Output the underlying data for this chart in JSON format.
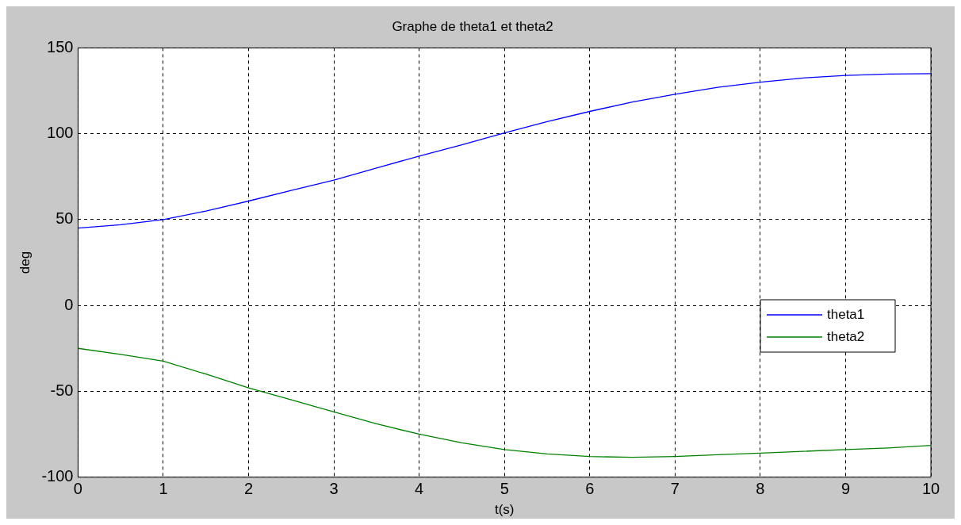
{
  "chart_data": {
    "type": "line",
    "title": "Graphe de theta1 et theta2",
    "xlabel": "t(s)",
    "ylabel": "deg",
    "xlim": [
      0,
      10
    ],
    "xticks": [
      0,
      1,
      2,
      3,
      4,
      5,
      6,
      7,
      8,
      9,
      10
    ],
    "ylim": [
      -100,
      150
    ],
    "yticks": [
      -100,
      -50,
      0,
      50,
      100,
      150
    ],
    "grid": true,
    "legend": "right",
    "line_style": "solid",
    "marker": "none",
    "series": [
      {
        "name": "theta1",
        "color": "#0000ff",
        "x": [
          0,
          0.5,
          1,
          1.5,
          2,
          2.5,
          3,
          3.5,
          4,
          4.5,
          5,
          5.5,
          6,
          6.5,
          7,
          7.5,
          8,
          8.5,
          9,
          9.5,
          10
        ],
        "values": [
          45,
          47,
          50,
          55,
          60.8,
          67,
          73,
          80,
          87,
          93.5,
          100.5,
          107,
          113,
          118.5,
          123,
          127,
          130,
          132.5,
          134,
          134.8,
          135
        ]
      },
      {
        "name": "theta2",
        "color": "#008000",
        "x": [
          0,
          0.5,
          1,
          1.5,
          2,
          2.5,
          3,
          3.5,
          4,
          4.5,
          5,
          5.5,
          6,
          6.5,
          7,
          7.5,
          8,
          8.5,
          9,
          9.5,
          10
        ],
        "values": [
          -25,
          -28.5,
          -32.5,
          -40,
          -48,
          -55,
          -62,
          -69,
          -75,
          -80,
          -84,
          -86.5,
          -88,
          -88.5,
          -88,
          -87,
          -86,
          -85,
          -84,
          -83,
          -81.5
        ]
      }
    ]
  }
}
